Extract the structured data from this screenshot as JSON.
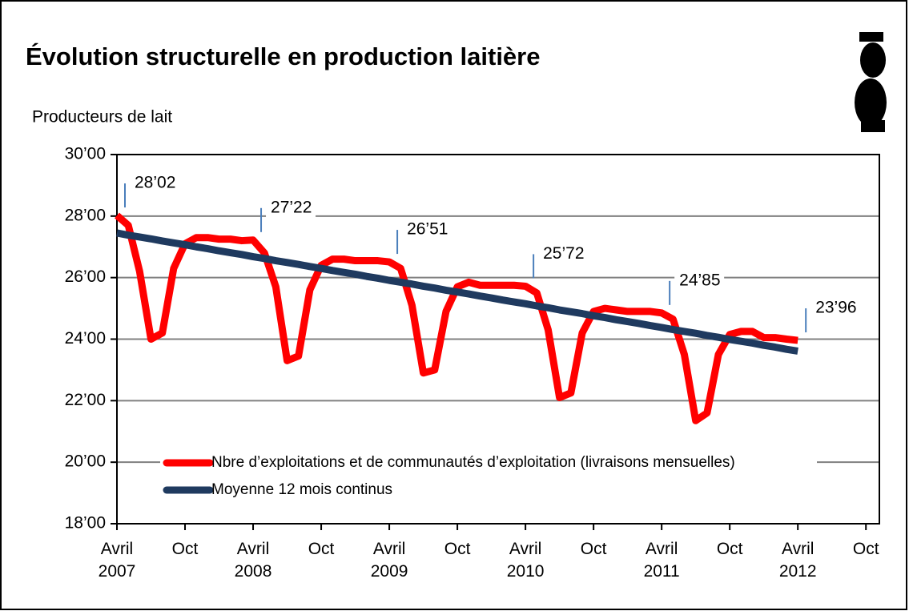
{
  "chart_data": {
    "type": "line",
    "title": "Évolution structurelle en production laitière",
    "y_label": "Producteurs de lait",
    "categories": [
      "Avril\n2007",
      null,
      null,
      null,
      null,
      null,
      "Oct",
      null,
      null,
      null,
      null,
      null,
      "Avril\n2008",
      null,
      null,
      null,
      null,
      null,
      "Oct",
      null,
      null,
      null,
      null,
      null,
      "Avril\n2009",
      null,
      null,
      null,
      null,
      null,
      "Oct",
      null,
      null,
      null,
      null,
      null,
      "Avril\n2010",
      null,
      null,
      null,
      null,
      null,
      "Oct",
      null,
      null,
      null,
      null,
      null,
      "Avril\n2011",
      null,
      null,
      null,
      null,
      null,
      "Oct",
      null,
      null,
      null,
      null,
      null,
      "Avril\n2012",
      null,
      null,
      null,
      null,
      null,
      "Oct"
    ],
    "series": [
      {
        "name": "Nbre d’exploitations et de communautés d’exploitation (livraisons mensuelles)",
        "color": "#ff0000",
        "values": [
          2802,
          2770,
          2620,
          2400,
          2420,
          2630,
          2710,
          2730,
          2730,
          2725,
          2725,
          2720,
          2722,
          2680,
          2570,
          2330,
          2345,
          2560,
          2640,
          2660,
          2660,
          2655,
          2655,
          2655,
          2651,
          2630,
          2510,
          2290,
          2300,
          2490,
          2570,
          2585,
          2575,
          2575,
          2575,
          2575,
          2572,
          2550,
          2430,
          2210,
          2225,
          2420,
          2490,
          2500,
          2495,
          2490,
          2490,
          2490,
          2485,
          2465,
          2350,
          2135,
          2160,
          2350,
          2415,
          2425,
          2425,
          2405,
          2405,
          2400,
          2396,
          null,
          null,
          null,
          null,
          null,
          null
        ],
        "value_labels": [
          "28’02",
          null,
          null,
          null,
          null,
          null,
          null,
          null,
          null,
          null,
          null,
          null,
          "27’22",
          null,
          null,
          null,
          null,
          null,
          null,
          null,
          null,
          null,
          null,
          null,
          "26’51",
          null,
          null,
          null,
          null,
          null,
          null,
          null,
          null,
          null,
          null,
          null,
          "25’72",
          null,
          null,
          null,
          null,
          null,
          null,
          null,
          null,
          null,
          null,
          null,
          "24’85",
          null,
          null,
          null,
          null,
          null,
          null,
          null,
          null,
          null,
          null,
          null,
          "23’96",
          null,
          null,
          null,
          null,
          null,
          null
        ]
      },
      {
        "name": "Moyenne 12 mois continus",
        "color": "#1f3a5f",
        "values": [
          2745,
          2738,
          2732,
          2726,
          2719,
          2713,
          2707,
          2700,
          2694,
          2687,
          2681,
          2675,
          2668,
          2662,
          2655,
          2649,
          2643,
          2636,
          2630,
          2623,
          2617,
          2611,
          2604,
          2598,
          2591,
          2585,
          2579,
          2572,
          2566,
          2559,
          2553,
          2547,
          2540,
          2534,
          2527,
          2521,
          2515,
          2508,
          2502,
          2495,
          2489,
          2483,
          2476,
          2470,
          2463,
          2457,
          2451,
          2444,
          2438,
          2431,
          2425,
          2419,
          2412,
          2406,
          2399,
          2393,
          2387,
          2380,
          2374,
          2367,
          2361,
          null,
          null,
          null,
          null,
          null,
          null
        ]
      }
    ],
    "ylim": [
      1800,
      3000
    ],
    "yticks": [
      {
        "value": 1800,
        "label": "18’00"
      },
      {
        "value": 2000,
        "label": "20’00"
      },
      {
        "value": 2200,
        "label": "22’00"
      },
      {
        "value": 2400,
        "label": "24’00"
      },
      {
        "value": 2600,
        "label": "26’00"
      },
      {
        "value": 2800,
        "label": "28’00"
      },
      {
        "value": 3000,
        "label": "30’00"
      }
    ],
    "grid": true,
    "legend": "lower-left"
  }
}
